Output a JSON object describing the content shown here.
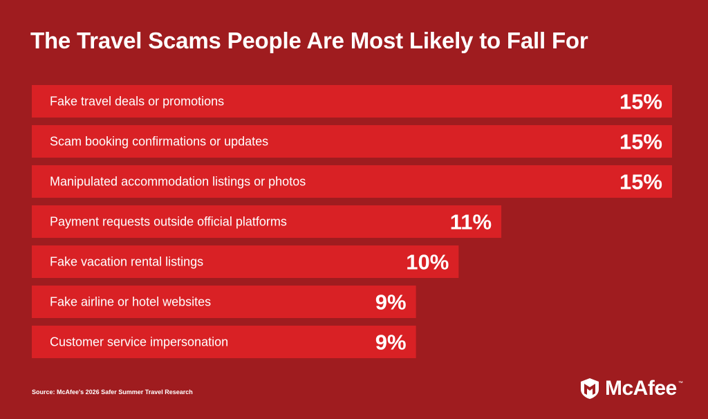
{
  "title": "The Travel Scams People Are Most Likely to Fall For",
  "source": "Source: McAfee's 2026 Safer Summer Travel Research",
  "brand": {
    "name": "McAfee",
    "trademark": "™",
    "logo_icon": "mcafee-shield-m-icon"
  },
  "colors": {
    "background": "#9f1c1f",
    "bar": "#d92125",
    "text": "#ffffff"
  },
  "chart_data": {
    "type": "bar",
    "orientation": "horizontal",
    "categories": [
      "Fake travel deals or promotions",
      "Scam booking confirmations or updates",
      "Manipulated accommodation listings or photos",
      "Payment requests outside official platforms",
      "Fake vacation rental listings",
      "Fake airline or hotel websites",
      "Customer service impersonation"
    ],
    "values": [
      15,
      15,
      15,
      11,
      10,
      9,
      9
    ],
    "value_labels": [
      "15%",
      "15%",
      "15%",
      "11%",
      "10%",
      "9%",
      "9%"
    ],
    "unit": "%",
    "title": "The Travel Scams People Are Most Likely to Fall For",
    "xlim": [
      0,
      15
    ],
    "grid": false,
    "legend": "none"
  }
}
